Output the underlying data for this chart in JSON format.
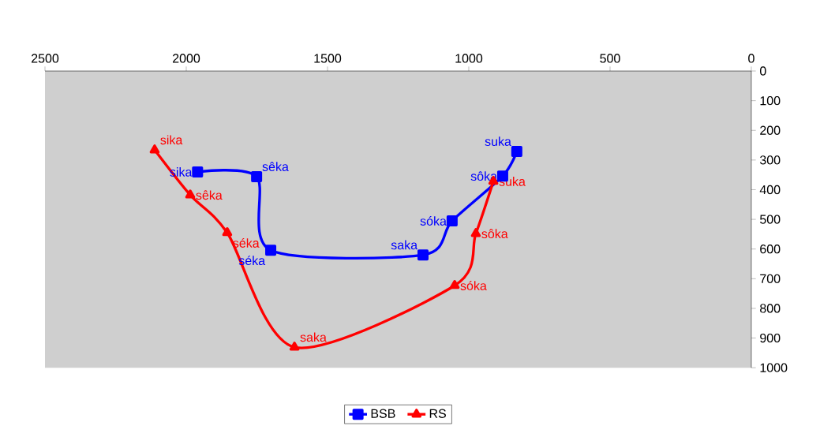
{
  "chart_data": {
    "type": "line",
    "xlim": [
      2500,
      0
    ],
    "xticks": [
      2500,
      2000,
      1500,
      1000,
      500,
      0
    ],
    "ylim": [
      1000,
      0
    ],
    "yticks": [
      0,
      100,
      200,
      300,
      400,
      500,
      600,
      700,
      800,
      900,
      1000
    ],
    "legend": "bottom",
    "grid": false,
    "series": [
      {
        "name": "BSB",
        "color": "#0000ff",
        "marker": "square",
        "x": [
          1960,
          1751,
          1701,
          1162,
          1059,
          880,
          830
        ],
        "values": [
          340,
          356,
          604,
          620,
          505,
          354,
          271
        ],
        "value_labels": [
          "sika",
          "sêka",
          "séka",
          "saka",
          "sóka",
          "sôka",
          "suka"
        ]
      },
      {
        "name": "RS",
        "color": "#ff0000",
        "marker": "triangle",
        "x": [
          2112,
          1986,
          1855,
          1617,
          1050,
          975,
          913
        ],
        "values": [
          266,
          418,
          545,
          931,
          723,
          548,
          372
        ],
        "value_labels": [
          "sika",
          "sêka",
          "séka",
          "saka",
          "sóka",
          "sôka",
          "suka"
        ]
      }
    ]
  }
}
